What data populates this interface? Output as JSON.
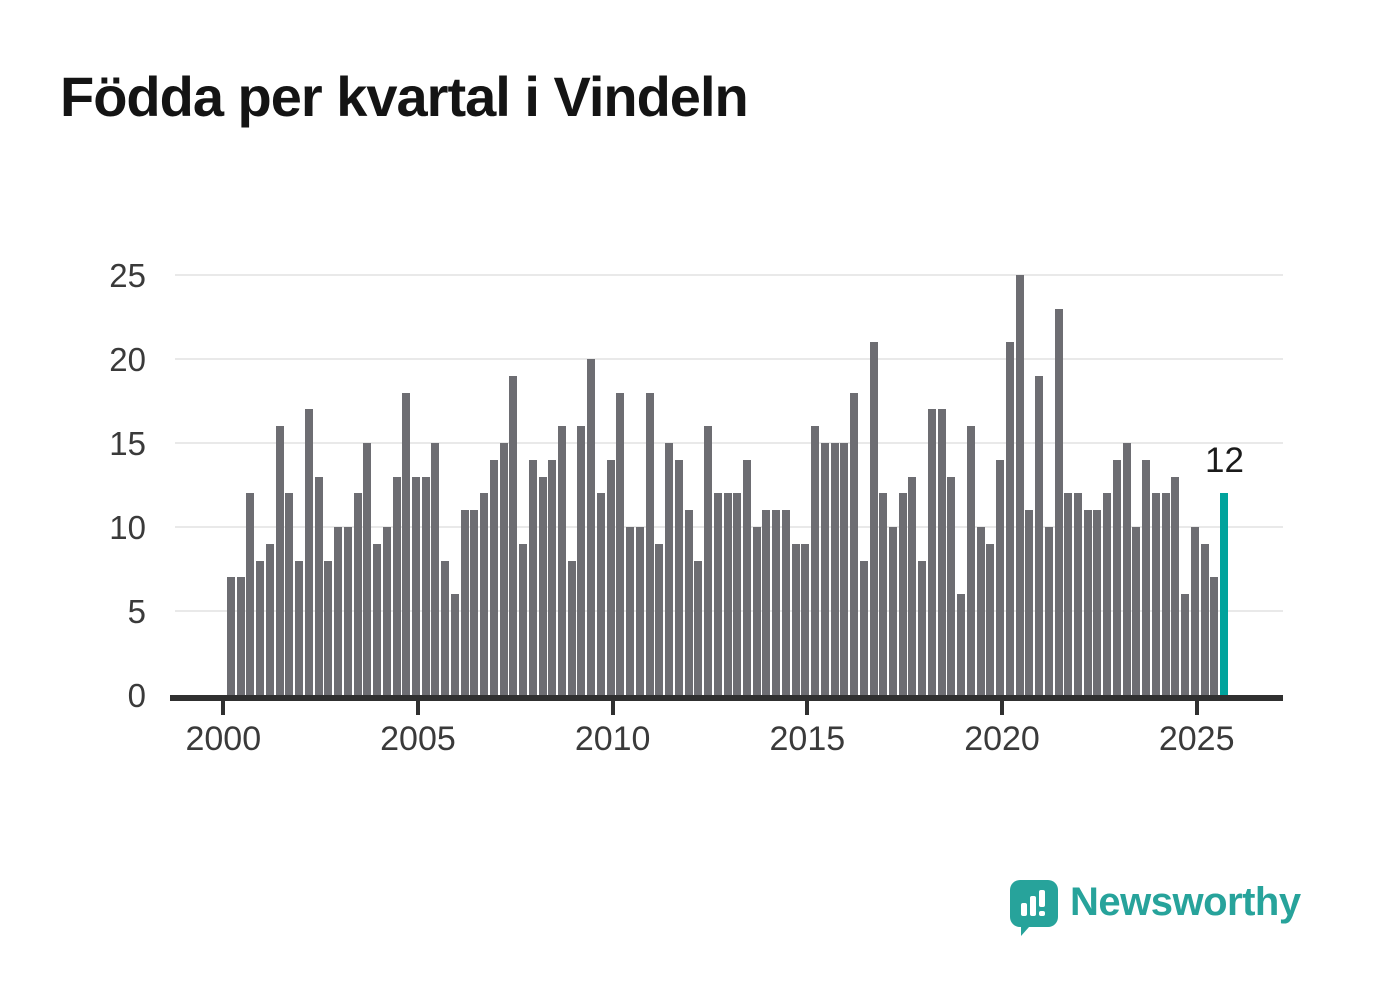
{
  "title": "Födda per kvartal i Vindeln",
  "annotation": {
    "highlight_value_label": "12"
  },
  "logo": {
    "brand": "Newsworthy",
    "icon": "speech-bubble-bar-chart-icon"
  },
  "colors": {
    "bar": "#6d6d72",
    "highlight": "#00a39c",
    "grid": "#e9e9e9",
    "axis": "#303030",
    "tick_text": "#3a3a3a",
    "title_text": "#141414",
    "brand_teal": "#27a39b"
  },
  "chart_data": {
    "type": "bar",
    "title": "Födda per kvartal i Vindeln",
    "xlabel": "",
    "ylabel": "",
    "start_period": "2000 Q1",
    "end_period": "2025 Q3",
    "period": "quarterly",
    "values": [
      7,
      7,
      12,
      8,
      9,
      16,
      12,
      8,
      17,
      13,
      8,
      10,
      10,
      12,
      15,
      9,
      10,
      13,
      18,
      13,
      13,
      15,
      8,
      6,
      11,
      11,
      12,
      14,
      15,
      19,
      9,
      14,
      13,
      14,
      16,
      8,
      16,
      20,
      12,
      14,
      18,
      10,
      10,
      18,
      9,
      15,
      14,
      11,
      8,
      16,
      12,
      12,
      12,
      14,
      10,
      11,
      11,
      11,
      9,
      9,
      16,
      15,
      15,
      15,
      18,
      8,
      21,
      12,
      10,
      12,
      13,
      8,
      17,
      17,
      13,
      6,
      16,
      10,
      9,
      14,
      21,
      25,
      11,
      19,
      10,
      23,
      12,
      12,
      11,
      11,
      12,
      14,
      15,
      10,
      14,
      12,
      12,
      13,
      6,
      10,
      9,
      7,
      12
    ],
    "highlight_index": 102,
    "highlight_label": "12",
    "x_tick_labels": [
      "2000",
      "2005",
      "2010",
      "2015",
      "2020",
      "2025"
    ],
    "y_tick_labels": [
      "0",
      "5",
      "10",
      "15",
      "20",
      "25"
    ],
    "ylim": [
      0,
      25
    ],
    "grid": "horizontal",
    "legend": "none"
  }
}
